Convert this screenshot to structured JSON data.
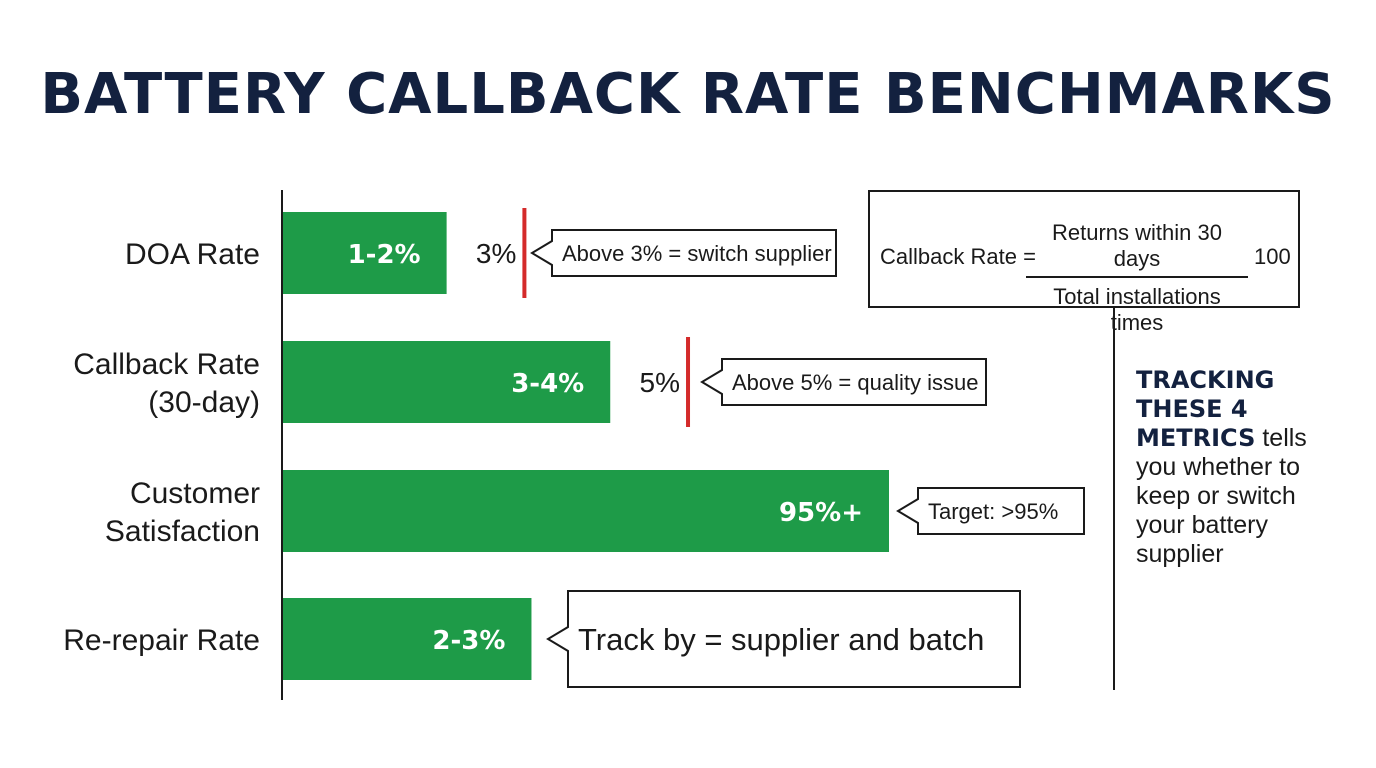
{
  "title": "BATTERY CALLBACK RATE BENCHMARKS",
  "chart_data": {
    "type": "bar",
    "orientation": "horizontal",
    "categories": [
      [
        "DOA Rate"
      ],
      [
        "Callback Rate",
        "(30-day)"
      ],
      [
        "Customer",
        "Satisfaction"
      ],
      [
        "Re-repair Rate"
      ]
    ],
    "values": [
      2,
      4,
      95,
      3
    ],
    "value_labels": [
      "1-2%",
      "3-4%",
      "95%+",
      "2-3%"
    ],
    "bar_fill_fraction": [
      0.27,
      0.54,
      1.0,
      0.41
    ],
    "thresholds": [
      {
        "row": 0,
        "label": "3%",
        "fraction": 0.4
      },
      {
        "row": 1,
        "label": "5%",
        "fraction": 0.67
      }
    ],
    "callouts": [
      {
        "row": 0,
        "text": "Above 3% = switch supplier"
      },
      {
        "row": 1,
        "text": "Above 5% = quality issue"
      },
      {
        "row": 2,
        "text": "Target: >95%"
      },
      {
        "row": 3,
        "text": "Track by = supplier and batch"
      }
    ],
    "colors": {
      "bar": "#1e9b48",
      "threshold": "#d42a2a",
      "title": "#13213f"
    }
  },
  "formula": {
    "lhs": "Callback Rate =",
    "numerator": "Returns within 30 days",
    "denominator": "Total installations times",
    "multiplier": "100"
  },
  "note": {
    "strong": "TRACKING THESE 4 METRICS",
    "rest": " tells you whether to keep or switch your battery supplier"
  }
}
